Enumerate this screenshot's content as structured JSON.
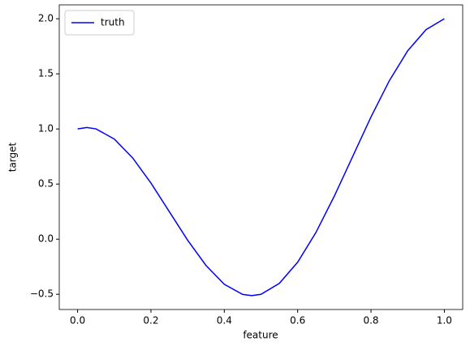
{
  "chart_data": {
    "type": "line",
    "xlabel": "feature",
    "ylabel": "target",
    "x": [
      0,
      0.025,
      0.05,
      0.1,
      0.15,
      0.2,
      0.25,
      0.3,
      0.35,
      0.4,
      0.45,
      0.475,
      0.5,
      0.55,
      0.6,
      0.65,
      0.7,
      0.75,
      0.8,
      0.85,
      0.9,
      0.95,
      1
    ],
    "series": [
      {
        "name": "truth",
        "color": "#0000ff",
        "values": [
          1,
          1.013,
          1.001,
          0.909,
          0.738,
          0.509,
          0.25,
          -0.009,
          -0.238,
          -0.409,
          -0.501,
          -0.512,
          -0.5,
          -0.401,
          -0.209,
          0.062,
          0.391,
          0.75,
          1.109,
          1.438,
          1.709,
          1.901,
          2
        ]
      }
    ],
    "xlim": [
      -0.05,
      1.05
    ],
    "ylim": [
      -0.638,
      2.126
    ],
    "xticks": [
      {
        "value": 0,
        "label": "0.0"
      },
      {
        "value": 0.2,
        "label": "0.2"
      },
      {
        "value": 0.4,
        "label": "0.4"
      },
      {
        "value": 0.6,
        "label": "0.6"
      },
      {
        "value": 0.8,
        "label": "0.8"
      },
      {
        "value": 1,
        "label": "1.0"
      }
    ],
    "yticks": [
      {
        "value": -0.5,
        "label": "−0.5"
      },
      {
        "value": 0,
        "label": "0.0"
      },
      {
        "value": 0.5,
        "label": "0.5"
      },
      {
        "value": 1,
        "label": "1.0"
      },
      {
        "value": 1.5,
        "label": "1.5"
      },
      {
        "value": 2,
        "label": "2.0"
      }
    ],
    "legend": "upper left"
  }
}
